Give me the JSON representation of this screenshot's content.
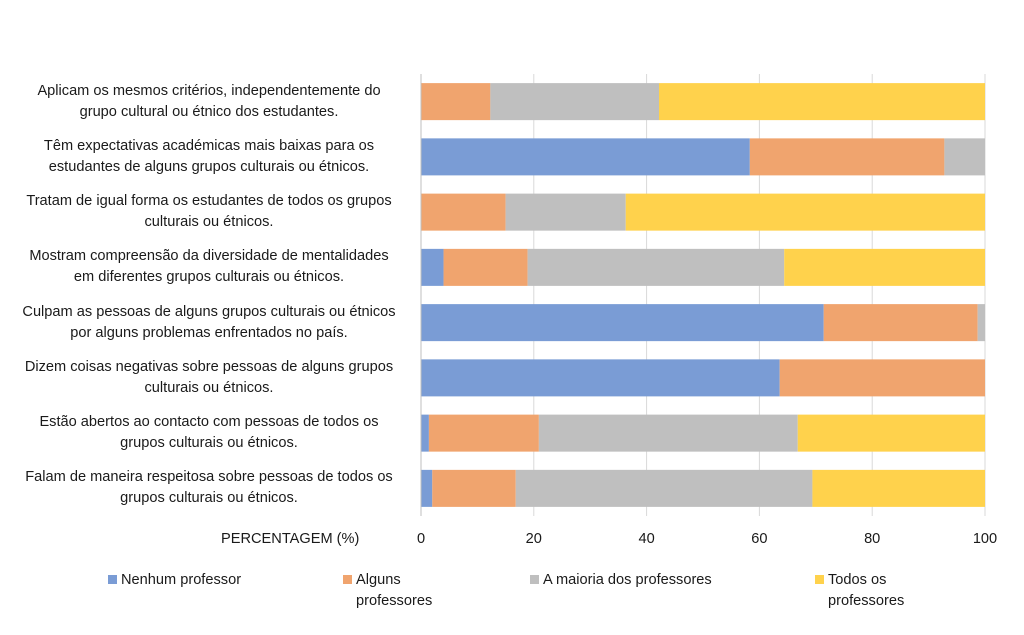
{
  "chart_data": {
    "type": "bar",
    "orientation": "horizontal",
    "stacked": true,
    "title": "",
    "xlabel": "PERCENTAGEM (%)",
    "ylabel": "",
    "xlim": [
      0,
      100
    ],
    "xticks": [
      "0",
      "20",
      "40",
      "60",
      "80",
      "100"
    ],
    "grid": true,
    "legend_position": "bottom",
    "categories": [
      "Aplicam os mesmos critérios, independentemente do grupo cultural ou étnico dos estudantes.",
      "Têm expectativas académicas mais baixas para os estudantes de alguns grupos culturais ou étnicos.",
      "Tratam de igual forma os estudantes de todos os grupos culturais ou étnicos.",
      "Mostram compreensão da diversidade de mentalidades em diferentes grupos culturais ou étnicos.",
      "Culpam as pessoas de alguns grupos culturais ou étnicos por alguns problemas enfrentados no país.",
      "Dizem coisas negativas sobre pessoas de alguns grupos culturais ou étnicos.",
      "Estão abertos ao contacto com pessoas de todos os grupos culturais ou étnicos.",
      "Falam de maneira respeitosa sobre pessoas de todos os grupos culturais ou étnicos."
    ],
    "category_lines": [
      [
        "Aplicam os mesmos critérios, independentemente do",
        "grupo cultural ou étnico dos estudantes."
      ],
      [
        "Têm expectativas académicas mais baixas para os",
        "estudantes de alguns grupos culturais ou étnicos."
      ],
      [
        "Tratam de igual forma os estudantes de todos os grupos",
        "culturais ou étnicos."
      ],
      [
        "Mostram compreensão da diversidade de mentalidades",
        "em diferentes grupos culturais ou étnicos."
      ],
      [
        "Culpam as pessoas de alguns grupos culturais ou étnicos",
        "por alguns problemas enfrentados no país."
      ],
      [
        "Dizem coisas negativas sobre pessoas de alguns grupos",
        "culturais ou étnicos."
      ],
      [
        "Estão abertos ao contacto com pessoas de todos os",
        "grupos culturais ou étnicos."
      ],
      [
        "Falam de maneira respeitosa sobre pessoas de todos os",
        "grupos culturais ou étnicos."
      ]
    ],
    "series": [
      {
        "name": "Nenhum professor",
        "legend_lines": [
          "Nenhum professor"
        ],
        "color": "#7A9CD5",
        "values": [
          0,
          58.3,
          0,
          4.0,
          71.4,
          63.6,
          1.4,
          2.0
        ]
      },
      {
        "name": "Alguns professores",
        "legend_lines": [
          "Alguns",
          "professores"
        ],
        "color": "#F0A46E",
        "values": [
          12.3,
          34.5,
          15.0,
          14.9,
          27.3,
          36.4,
          19.5,
          14.8
        ]
      },
      {
        "name": "A maioria dos professores",
        "legend_lines": [
          "A maioria dos professores"
        ],
        "color": "#BFBFBF",
        "values": [
          29.9,
          7.2,
          21.3,
          45.5,
          1.3,
          0,
          45.9,
          52.6
        ]
      },
      {
        "name": "Todos os professores",
        "legend_lines": [
          "Todos os",
          "professores"
        ],
        "color": "#FFD24C",
        "values": [
          57.8,
          0,
          63.7,
          35.6,
          0,
          0,
          33.2,
          30.6
        ]
      }
    ]
  }
}
